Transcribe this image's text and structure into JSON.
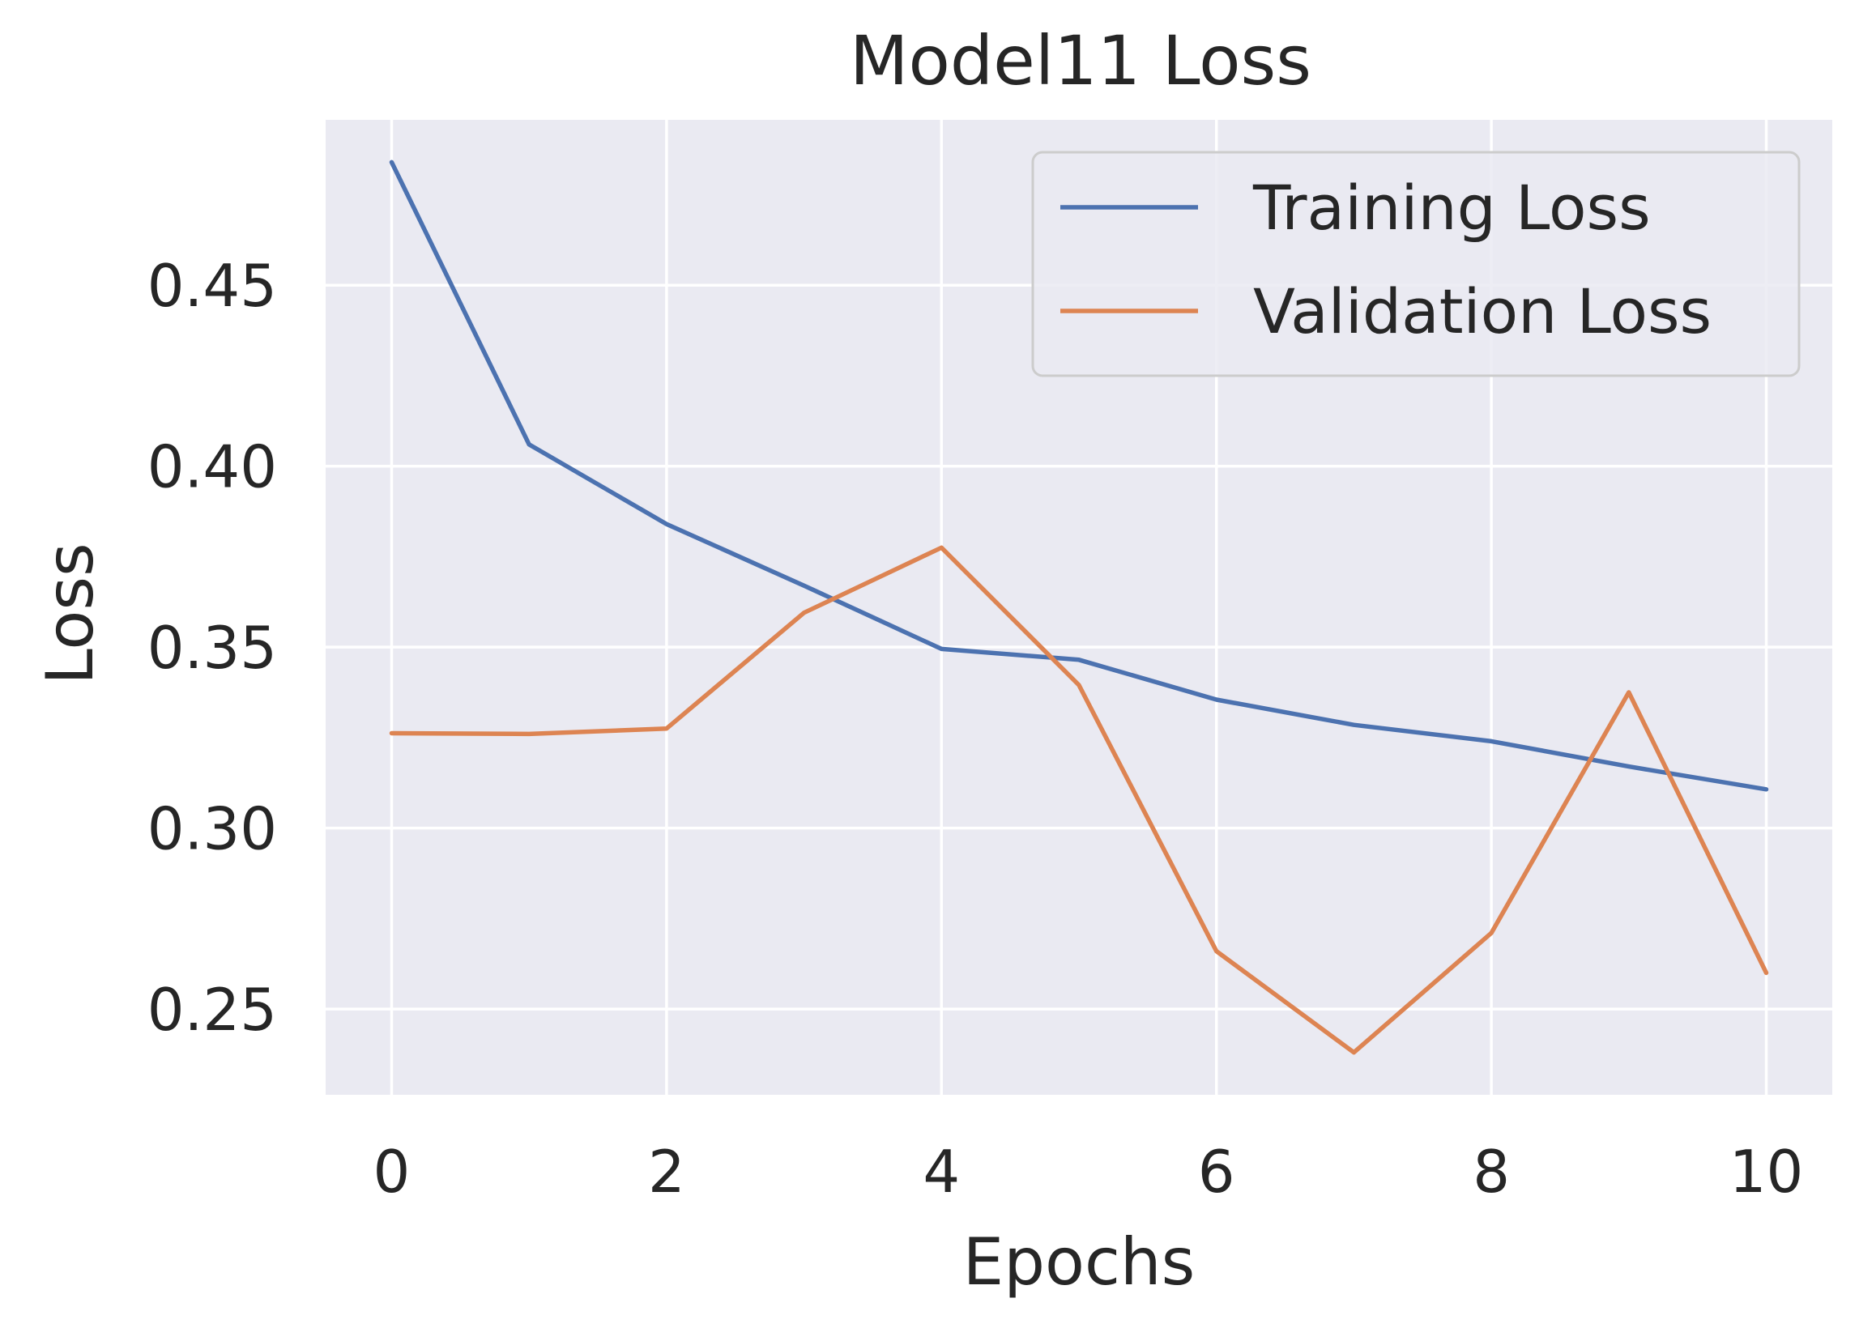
{
  "chart_data": {
    "type": "line",
    "title": "Model11 Loss",
    "xlabel": "Epochs",
    "ylabel": "Loss",
    "x": [
      0,
      1,
      2,
      3,
      4,
      5,
      6,
      7,
      8,
      9,
      10
    ],
    "xlim": [
      -0.48,
      10.48
    ],
    "ylim": [
      0.2263,
      0.4957
    ],
    "xticks": [
      0,
      2,
      4,
      6,
      8,
      10
    ],
    "yticks": [
      0.25,
      0.3,
      0.35,
      0.4,
      0.45
    ],
    "ytick_labels": [
      "0.25",
      "0.30",
      "0.35",
      "0.40",
      "0.45"
    ],
    "grid": true,
    "legend_position": "upper right",
    "background_color": "#eaeaf2",
    "series": [
      {
        "name": "Training Loss",
        "color": "#4c72b0",
        "values": [
          0.484,
          0.406,
          0.384,
          0.367,
          0.3495,
          0.3465,
          0.3355,
          0.3285,
          0.324,
          0.317,
          0.3107
        ]
      },
      {
        "name": "Validation Loss",
        "color": "#dd8452",
        "values": [
          0.3262,
          0.326,
          0.3275,
          0.3595,
          0.3775,
          0.3395,
          0.266,
          0.238,
          0.271,
          0.3375,
          0.26
        ]
      }
    ]
  }
}
